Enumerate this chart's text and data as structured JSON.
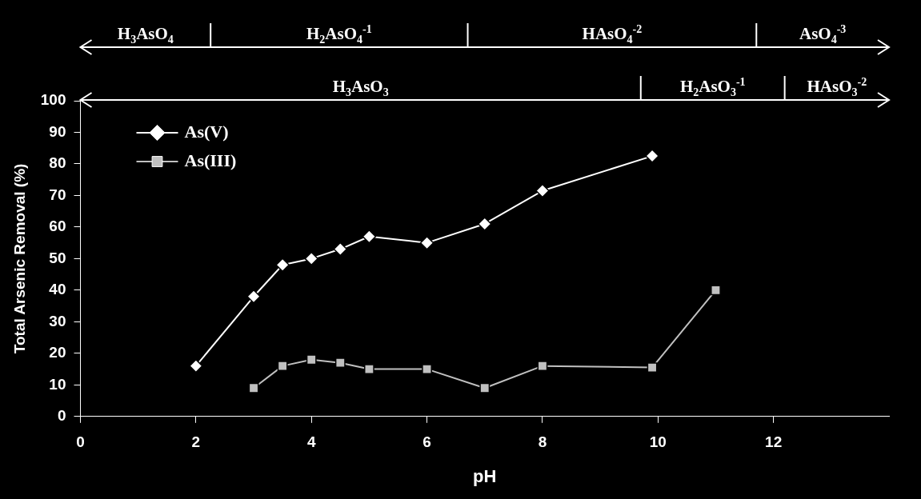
{
  "chart_data": {
    "type": "line",
    "xlabel": "pH",
    "ylabel": "Total Arsenic Removal (%)",
    "xlim": [
      0,
      14
    ],
    "xticks": [
      0,
      2,
      4,
      6,
      8,
      10,
      12
    ],
    "ylim": [
      0,
      100
    ],
    "yticks": [
      0,
      10,
      20,
      30,
      40,
      50,
      60,
      70,
      80,
      90,
      100
    ],
    "grid": false,
    "legend": "top left",
    "series": [
      {
        "name": "As(V)",
        "color": "#ffffff",
        "marker": "diamond",
        "x": [
          2,
          3,
          3.5,
          4,
          4.5,
          5,
          6,
          7,
          8,
          9.9
        ],
        "values": [
          16,
          38,
          48,
          50,
          53,
          57,
          55,
          61,
          71.5,
          82.5
        ]
      },
      {
        "name": "As(III)",
        "color": "#c0c0c0",
        "marker": "square",
        "x": [
          3,
          3.5,
          4,
          4.5,
          5,
          6,
          7,
          8,
          9.9,
          11
        ],
        "values": [
          9,
          16,
          18,
          17,
          15,
          15,
          9,
          16,
          15.5,
          40
        ]
      }
    ],
    "annotations": [
      "H$_{3}$AsO$_{4}$",
      "H$_{2}$AsO$_{4}$$^{-1}$",
      "HAsO$_{4}$$^{-2}$",
      "AsO$_{4}$$^{-3}$",
      "H$_{3}$AsO$_{3}$",
      "H$_{2}$AsO$_{3}$$^{-1}$",
      "HAsO$_{3}$$^{-2}$"
    ]
  }
}
